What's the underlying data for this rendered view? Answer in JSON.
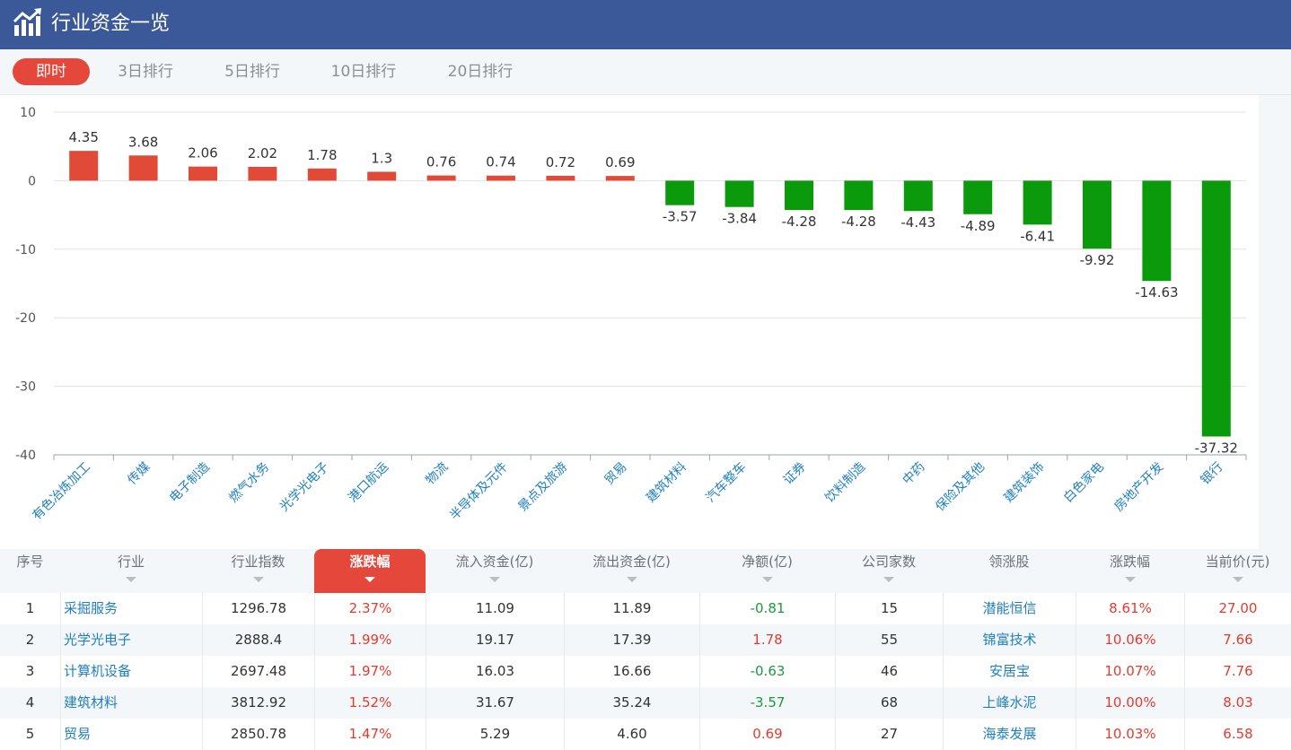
{
  "header": {
    "title": "行业资金一览",
    "logo_icon": "chart-trend-icon"
  },
  "tabs": [
    {
      "label": "即时",
      "active": true
    },
    {
      "label": "3日排行",
      "active": false
    },
    {
      "label": "5日排行",
      "active": false
    },
    {
      "label": "10日排行",
      "active": false
    },
    {
      "label": "20日排行",
      "active": false
    }
  ],
  "colors": {
    "header": "#3b5998",
    "accent": "#e5473a",
    "positive": "#e04a37",
    "negative": "#0b9a0b"
  },
  "chart_data": {
    "type": "bar",
    "categories": [
      "有色冶炼加工",
      "传媒",
      "电子制造",
      "燃气水务",
      "光学光电子",
      "港口航运",
      "物流",
      "半导体及元件",
      "景点及旅游",
      "贸易",
      "建筑材料",
      "汽车整车",
      "证券",
      "饮料制造",
      "中药",
      "保险及其他",
      "建筑装饰",
      "白色家电",
      "房地产开发",
      "银行"
    ],
    "values": [
      4.35,
      3.68,
      2.06,
      2.02,
      1.78,
      1.3,
      0.76,
      0.74,
      0.72,
      0.69,
      -3.57,
      -3.84,
      -4.28,
      -4.28,
      -4.43,
      -4.89,
      -6.41,
      -9.92,
      -14.63,
      -37.32
    ],
    "value_labels": [
      "4.35",
      "3.68",
      "2.06",
      "2.02",
      "1.78",
      "1.3",
      "0.76",
      "0.74",
      "0.72",
      "0.69",
      "-3.57",
      "-3.84",
      "-4.28",
      "-4.28",
      "-4.43",
      "-4.89",
      "-6.41",
      "-9.92",
      "-14.63",
      "-37.32"
    ],
    "yticks": [
      10,
      0,
      -10,
      -20,
      -30,
      -40
    ],
    "ylim": [
      -40,
      10
    ],
    "grid": true,
    "title": "",
    "xlabel": "",
    "ylabel": ""
  },
  "table": {
    "columns": [
      {
        "label": "序号"
      },
      {
        "label": "行业"
      },
      {
        "label": "行业指数"
      },
      {
        "label": "涨跌幅",
        "active": true
      },
      {
        "label": "流入资金(亿)"
      },
      {
        "label": "流出资金(亿)"
      },
      {
        "label": "净额(亿)"
      },
      {
        "label": "公司家数"
      },
      {
        "label": "领涨股"
      },
      {
        "label": "涨跌幅"
      },
      {
        "label": "当前价(元)"
      }
    ],
    "rows": [
      {
        "rank": "1",
        "industry": "采掘服务",
        "index": "1296.78",
        "change": "2.37%",
        "inflow": "11.09",
        "outflow": "11.89",
        "net": "-0.81",
        "net_sign": "neg",
        "companies": "15",
        "leader": "潜能恒信",
        "leader_change": "8.61%",
        "price": "27.00"
      },
      {
        "rank": "2",
        "industry": "光学光电子",
        "index": "2888.4",
        "change": "1.99%",
        "inflow": "19.17",
        "outflow": "17.39",
        "net": "1.78",
        "net_sign": "pos",
        "companies": "55",
        "leader": "锦富技术",
        "leader_change": "10.06%",
        "price": "7.66"
      },
      {
        "rank": "3",
        "industry": "计算机设备",
        "index": "2697.48",
        "change": "1.97%",
        "inflow": "16.03",
        "outflow": "16.66",
        "net": "-0.63",
        "net_sign": "neg",
        "companies": "46",
        "leader": "安居宝",
        "leader_change": "10.07%",
        "price": "7.76"
      },
      {
        "rank": "4",
        "industry": "建筑材料",
        "index": "3812.92",
        "change": "1.52%",
        "inflow": "31.67",
        "outflow": "35.24",
        "net": "-3.57",
        "net_sign": "neg",
        "companies": "68",
        "leader": "上峰水泥",
        "leader_change": "10.00%",
        "price": "8.03"
      },
      {
        "rank": "5",
        "industry": "贸易",
        "index": "2850.78",
        "change": "1.47%",
        "inflow": "5.29",
        "outflow": "4.60",
        "net": "0.69",
        "net_sign": "pos",
        "companies": "27",
        "leader": "海泰发展",
        "leader_change": "10.03%",
        "price": "6.58"
      }
    ]
  }
}
